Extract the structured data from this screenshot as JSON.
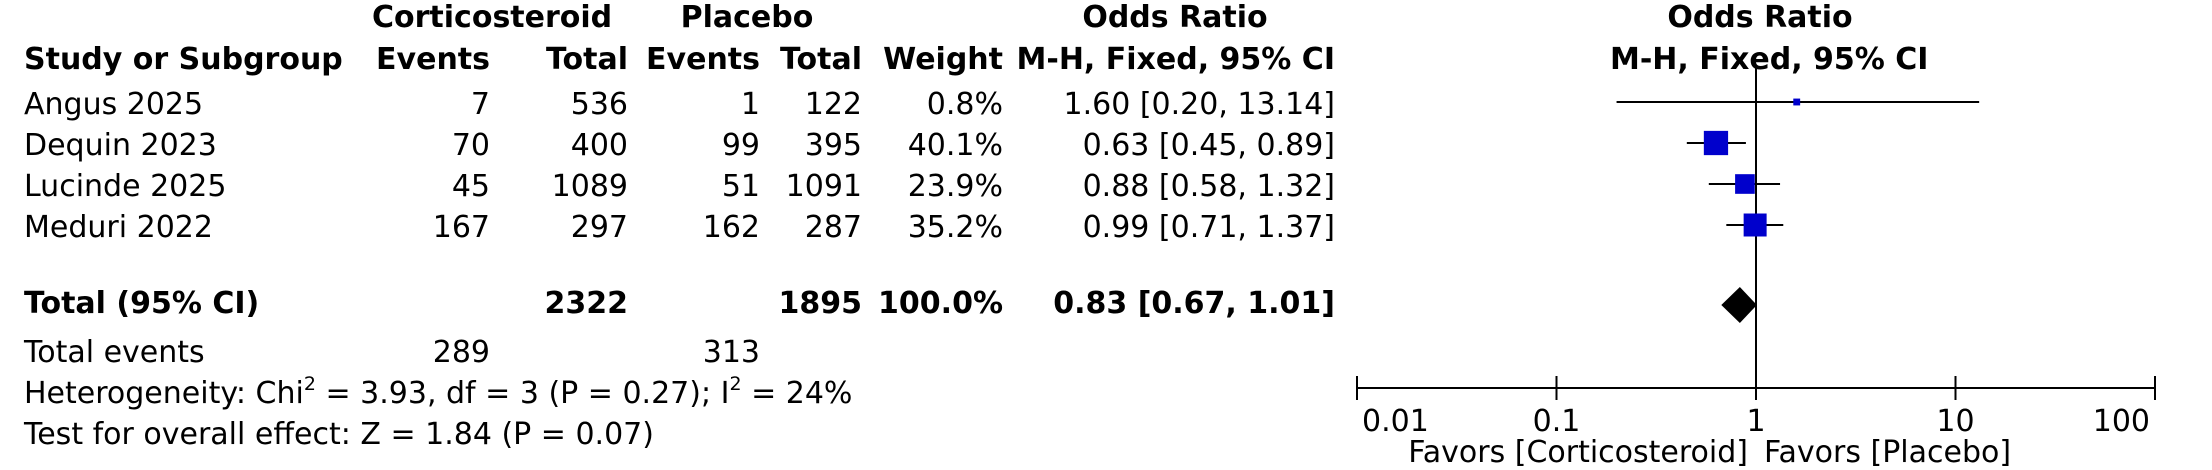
{
  "headers": {
    "study": "Study or Subgroup",
    "group1": "Corticosteroid",
    "group2": "Placebo",
    "events": "Events",
    "total": "Total",
    "weight": "Weight",
    "odds_ratio": "Odds Ratio",
    "method": "M-H, Fixed, 95% CI"
  },
  "studies": [
    {
      "name": "Angus 2025",
      "events1": "7",
      "total1": "536",
      "events2": "1",
      "total2": "122",
      "weight": "0.8%",
      "ci_text": "1.60 [0.20, 13.14]"
    },
    {
      "name": "Dequin 2023",
      "events1": "70",
      "total1": "400",
      "events2": "99",
      "total2": "395",
      "weight": "40.1%",
      "ci_text": "0.63 [0.45, 0.89]"
    },
    {
      "name": "Lucinde 2025",
      "events1": "45",
      "total1": "1089",
      "events2": "51",
      "total2": "1091",
      "weight": "23.9%",
      "ci_text": "0.88 [0.58, 1.32]"
    },
    {
      "name": "Meduri 2022",
      "events1": "167",
      "total1": "297",
      "events2": "162",
      "total2": "287",
      "weight": "35.2%",
      "ci_text": "0.99 [0.71, 1.37]"
    }
  ],
  "total": {
    "label": "Total (95% CI)",
    "total1": "2322",
    "total2": "1895",
    "weight": "100.0%",
    "ci_text": "0.83 [0.67, 1.01]"
  },
  "total_events": {
    "label": "Total events",
    "events1": "289",
    "events2": "313"
  },
  "heterogeneity": {
    "prefix": "Heterogeneity: Chi",
    "chi_sup": "2",
    "mid": " = 3.93, df = 3 (P = 0.27); I",
    "i_sup": "2",
    "suffix": " = 24%"
  },
  "overall_effect": "Test for overall effect: Z = 1.84 (P = 0.07)",
  "chart_data": {
    "type": "forest",
    "scale": "log",
    "xlim": [
      0.01,
      100
    ],
    "ticks": [
      "0.01",
      "0.1",
      "1",
      "10",
      "100"
    ],
    "tick_values": [
      0.01,
      0.1,
      1,
      10,
      100
    ],
    "favors_left": "Favors [Corticosteroid]",
    "favors_right": "Favors [Placebo]",
    "colors": {
      "square": "#0000cc",
      "diamond": "#000000",
      "line": "#000000"
    },
    "studies": [
      {
        "name": "Angus 2025",
        "or": 1.6,
        "lower": 0.2,
        "upper": 13.14,
        "weight": 0.8
      },
      {
        "name": "Dequin 2023",
        "or": 0.63,
        "lower": 0.45,
        "upper": 0.89,
        "weight": 40.1
      },
      {
        "name": "Lucinde 2025",
        "or": 0.88,
        "lower": 0.58,
        "upper": 1.32,
        "weight": 23.9
      },
      {
        "name": "Meduri 2022",
        "or": 0.99,
        "lower": 0.71,
        "upper": 1.37,
        "weight": 35.2
      }
    ],
    "pooled": {
      "or": 0.83,
      "lower": 0.67,
      "upper": 1.01
    }
  }
}
